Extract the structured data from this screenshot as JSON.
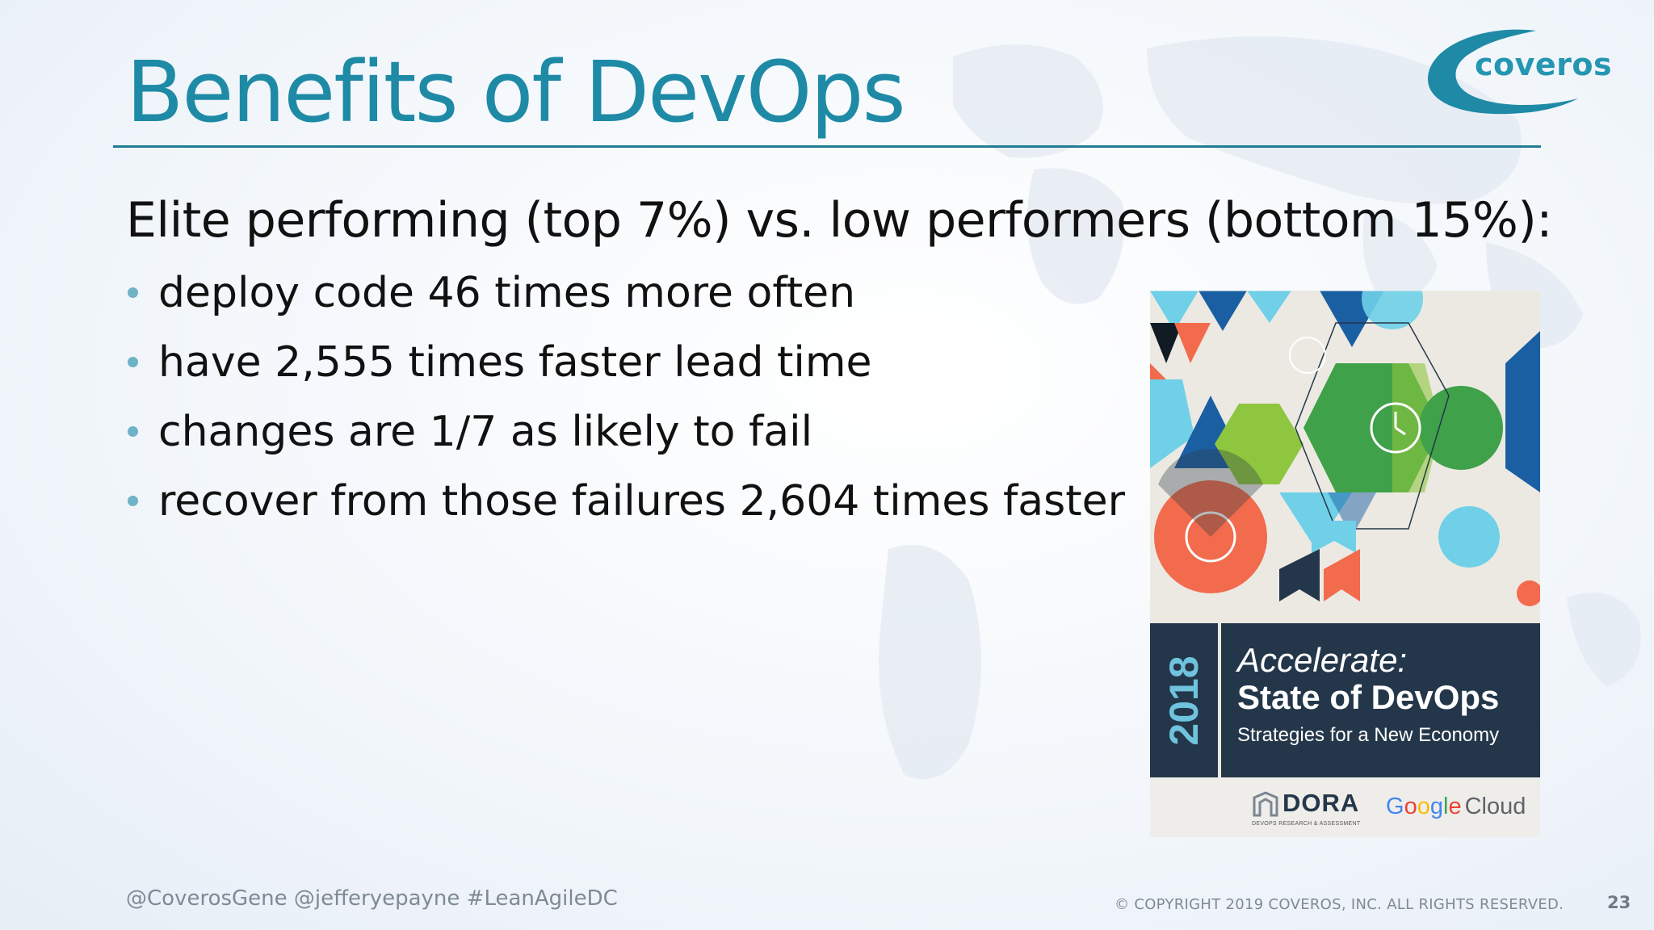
{
  "slide": {
    "title": "Benefits of DevOps",
    "subtitle": "Elite performing (top 7%) vs. low performers (bottom 15%):",
    "bullets": [
      "deploy code 46 times more often",
      "have 2,555 times faster lead time",
      "changes are 1/7 as likely to fail",
      "recover from those failures 2,604 times faster"
    ],
    "page_number": "23"
  },
  "logo": {
    "text": "coveros",
    "color": "#2596b2"
  },
  "report_cover": {
    "year": "2018",
    "title_line_1": "Accelerate:",
    "title_line_2": "State of DevOps",
    "title_line_3": "Strategies for a New Economy",
    "dora": {
      "name": "DORA",
      "tagline": "DEVOPS RESEARCH & ASSESSMENT"
    },
    "google_cloud": {
      "letters": [
        "G",
        "o",
        "o",
        "g",
        "l",
        "e"
      ],
      "letter_colors": [
        "#4285f4",
        "#ea4335",
        "#fbbc05",
        "#4285f4",
        "#34a853",
        "#ea4335"
      ],
      "suffix": "Cloud"
    },
    "band_color": "#24374a"
  },
  "footer": {
    "handles": "@CoverosGene @jefferyepayne #LeanAgileDC",
    "copyright": "© COPYRIGHT 2019 COVEROS, INC. ALL RIGHTS RESERVED."
  },
  "colors": {
    "title": "#1e8aa6",
    "rule": "#1f7d95",
    "bullet": "#6fb3c7"
  }
}
